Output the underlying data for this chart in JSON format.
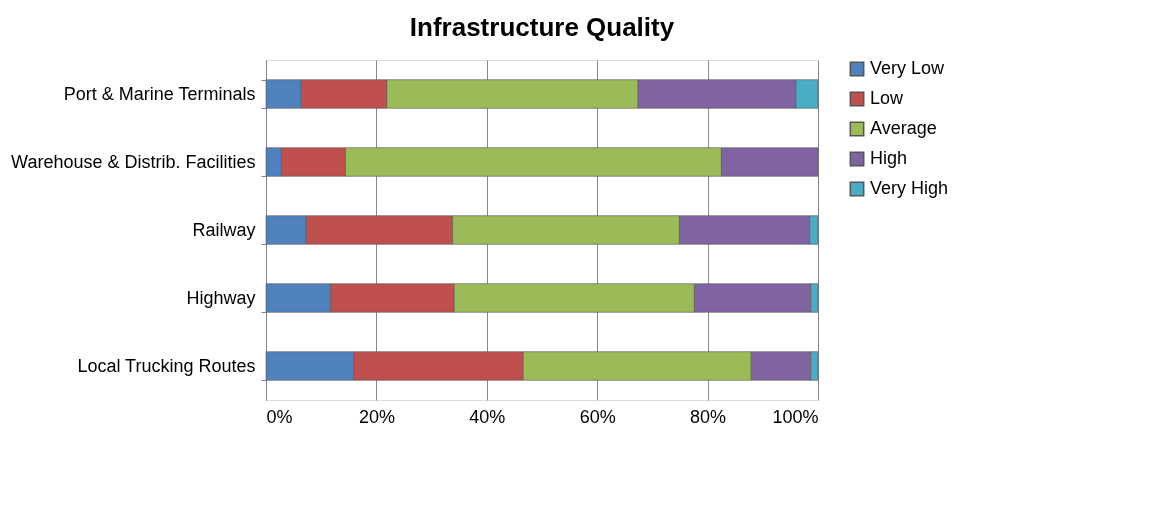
{
  "chart_data": {
    "type": "bar",
    "orientation": "horizontal",
    "stacked": true,
    "title": "Infrastructure Quality",
    "categories": [
      "Port & Marine Terminals",
      "Warehouse & Distrib. Facilities",
      "Railway",
      "Highway",
      "Local Trucking Routes"
    ],
    "series": [
      {
        "name": "Very Low",
        "color": "#4f81bd",
        "values": [
          6.4,
          2.8,
          7.3,
          11.7,
          15.9
        ]
      },
      {
        "name": "Low",
        "color": "#c0504d",
        "values": [
          15.5,
          11.6,
          26.5,
          22.4,
          30.7
        ]
      },
      {
        "name": "Average",
        "color": "#9bbb59",
        "values": [
          45.5,
          68.1,
          41.1,
          43.5,
          41.3
        ]
      },
      {
        "name": "High",
        "color": "#8064a2",
        "values": [
          28.6,
          17.5,
          23.6,
          21.1,
          10.8
        ]
      },
      {
        "name": "Very High",
        "color": "#4bacc6",
        "values": [
          4.0,
          null,
          1.5,
          1.3,
          1.3
        ]
      }
    ],
    "xlim": [
      0,
      100
    ],
    "xticks": [
      {
        "value": 0,
        "label": "0%"
      },
      {
        "value": 20,
        "label": "20%"
      },
      {
        "value": 40,
        "label": "40%"
      },
      {
        "value": 60,
        "label": "60%"
      },
      {
        "value": 80,
        "label": "80%"
      },
      {
        "value": 100,
        "label": "100%"
      }
    ],
    "grid": "x",
    "legend": "right"
  }
}
